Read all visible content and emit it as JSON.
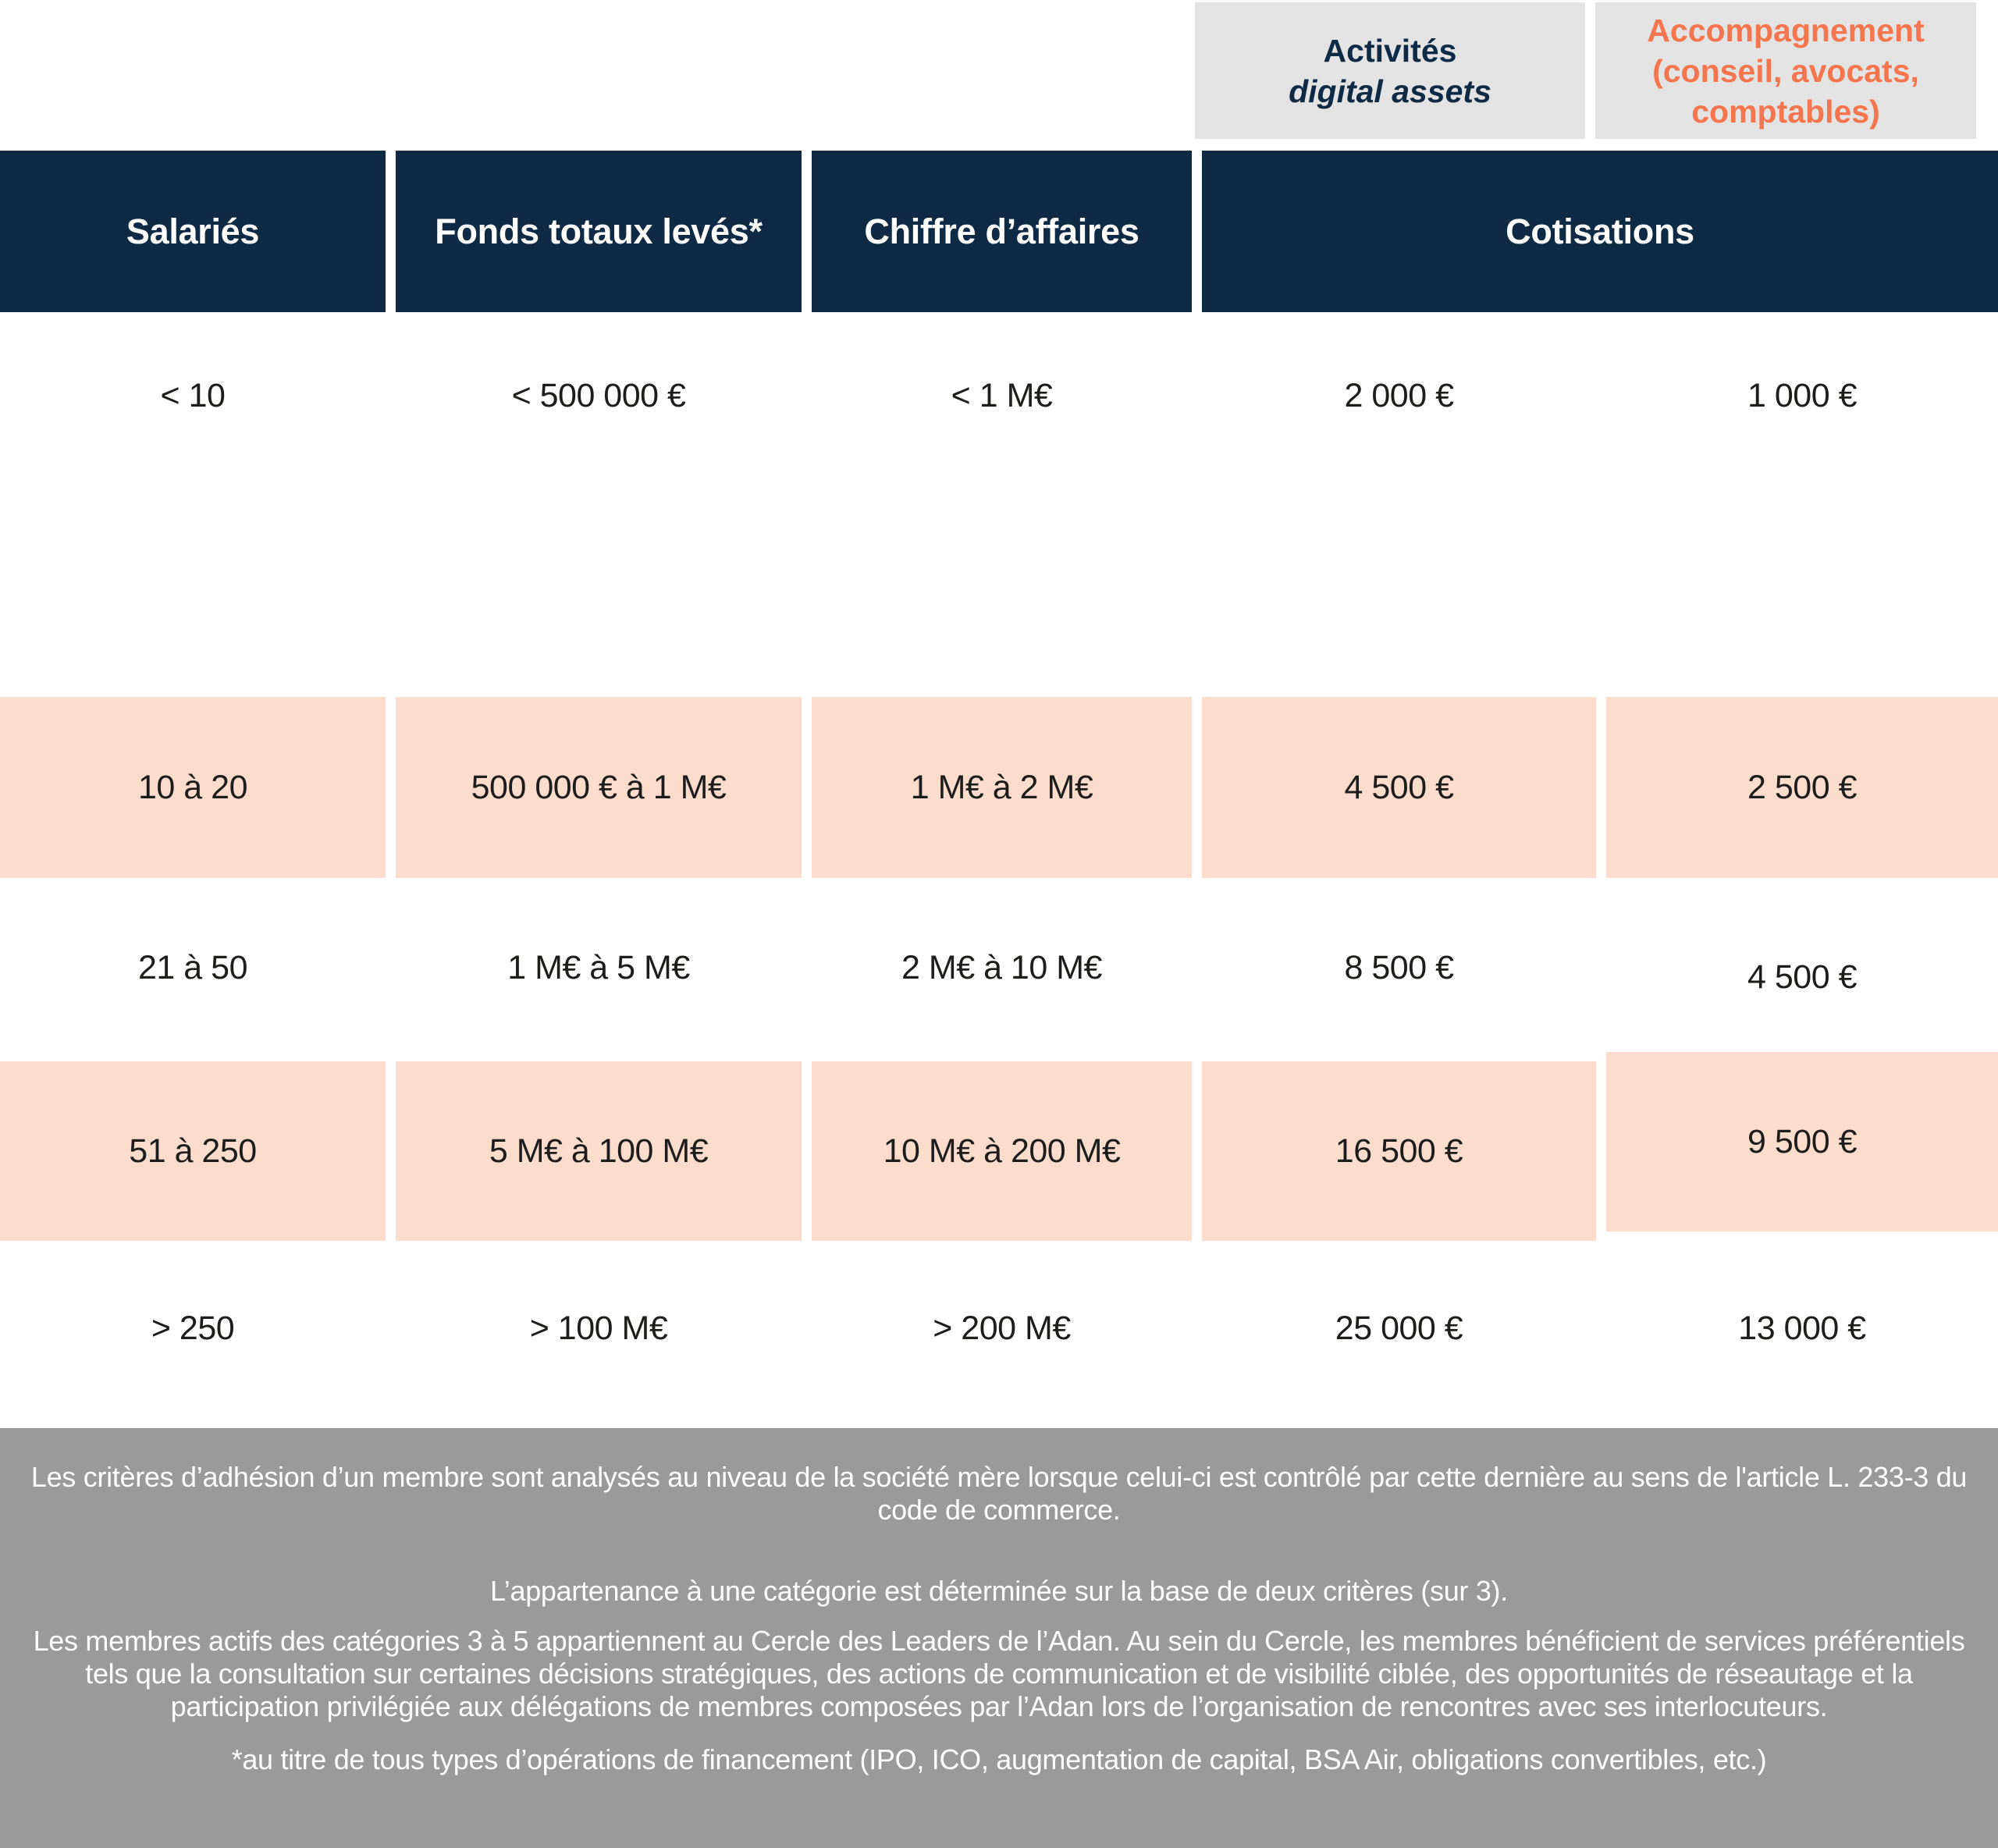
{
  "colors": {
    "navy": "#0e2a45",
    "highlight_pink": "#fcdccd",
    "accent_orange": "#f5764e",
    "subheader_gray": "#e3e3e3",
    "footer_gray": "#9a9a9a",
    "text_dark": "#1d1d1b",
    "text_white": "#ffffff"
  },
  "cotisation_subheaders": {
    "activites_line1": "Activités",
    "activites_line2": "digital assets",
    "accompagnement": "Accompagnement (conseil, avocats, comptables)"
  },
  "column_headers": {
    "salaries": "Salariés",
    "fonds": "Fonds totaux levés*",
    "chiffre_affaires": "Chiffre d’affaires",
    "cotisations": "Cotisations"
  },
  "table": {
    "rows": [
      {
        "salaries": "< 10",
        "fonds": "< 500 000 €",
        "chiffre_affaires": "< 1 M€",
        "cotisation_activites": "2 000 €",
        "cotisation_accompagnement": "1 000 €",
        "highlighted": false
      },
      {
        "salaries": "10 à 20",
        "fonds": "500 000 € à 1 M€",
        "chiffre_affaires": "1 M€ à 2 M€",
        "cotisation_activites": "4 500 €",
        "cotisation_accompagnement": "2 500 €",
        "highlighted": true
      },
      {
        "salaries": "21 à 50",
        "fonds": "1 M€ à 5 M€",
        "chiffre_affaires": "2 M€ à 10 M€",
        "cotisation_activites": "8 500 €",
        "cotisation_accompagnement": "4 500 €",
        "highlighted": false
      },
      {
        "salaries": "51 à 250",
        "fonds": "5 M€ à 100 M€",
        "chiffre_affaires": "10 M€ à 200 M€",
        "cotisation_activites": "16 500 €",
        "cotisation_accompagnement": "9 500 €",
        "highlighted": true
      },
      {
        "salaries": "> 250",
        "fonds": "> 100 M€",
        "chiffre_affaires": "> 200 M€",
        "cotisation_activites": "25 000 €",
        "cotisation_accompagnement": "13 000 €",
        "highlighted": false
      }
    ]
  },
  "footer": {
    "paragraphs": [
      "Les critères d’adhésion d’un membre sont analysés au niveau de la société mère lorsque celui-ci est contrôlé par cette dernière au sens de l'article L. 233-3 du code de commerce.",
      "L’appartenance à une catégorie est déterminée sur la base de deux critères (sur 3).",
      "Les membres actifs des catégories 3 à 5 appartiennent au Cercle des Leaders de l’Adan. Au sein du Cercle, les membres bénéficient de services préférentiels tels que la consultation sur certaines décisions stratégiques, des actions de communication et de visibilité ciblée, des opportunités de réseautage et la participation privilégiée aux délégations de membres composées par l’Adan lors de l’organisation de rencontres avec ses interlocuteurs.",
      "*au titre de tous types d’opérations de financement (IPO, ICO, augmentation de capital, BSA Air, obligations convertibles, etc.)"
    ]
  }
}
